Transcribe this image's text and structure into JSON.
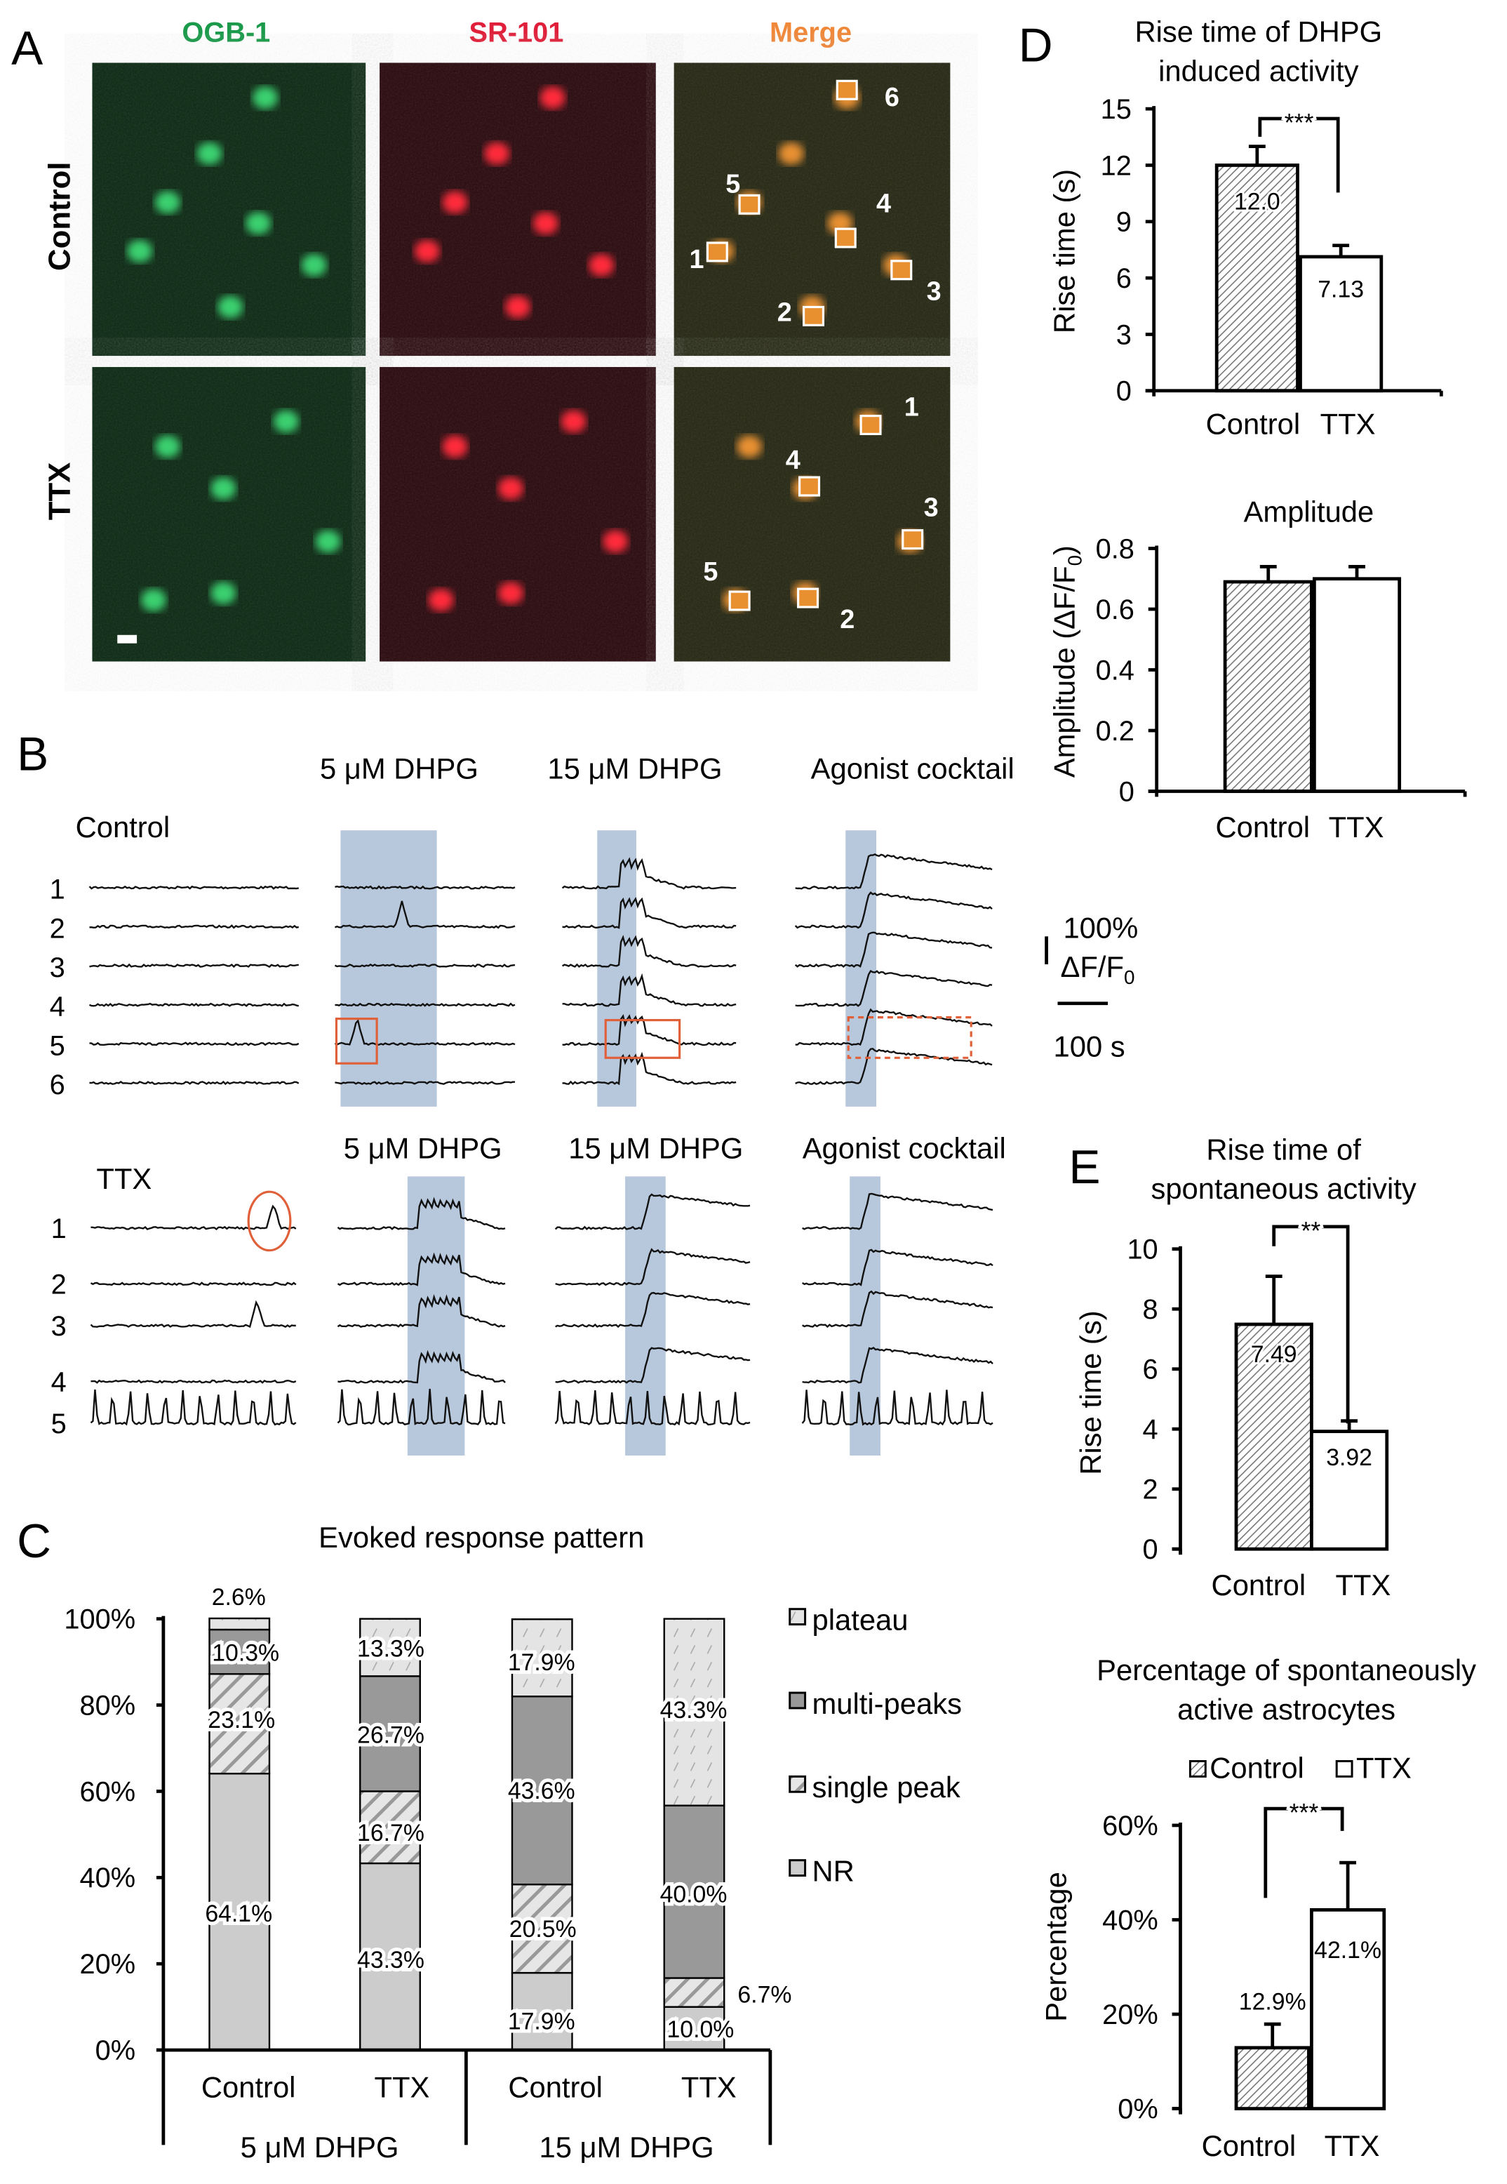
{
  "panel_labels": {
    "a": "A",
    "b": "B",
    "c": "C",
    "d": "D",
    "e": "E"
  },
  "panel_a": {
    "channels": [
      "OGB-1",
      "SR-101",
      "Merge"
    ],
    "channel_colors": [
      "#1a9a4a",
      "#e0203a",
      "#f0883a"
    ],
    "rows": [
      "Control",
      "TTX"
    ],
    "control_roi_labels": [
      "1",
      "2",
      "3",
      "4",
      "5",
      "6"
    ],
    "ttx_roi_labels": [
      "1",
      "2",
      "3",
      "4",
      "5"
    ]
  },
  "panel_b": {
    "control_label": "Control",
    "ttx_label": "TTX",
    "conditions": [
      "5 μM DHPG",
      "15 μM DHPG",
      "Agonist cocktail"
    ],
    "control_cells": [
      "1",
      "2",
      "3",
      "4",
      "5",
      "6"
    ],
    "ttx_cells": [
      "1",
      "2",
      "3",
      "4",
      "5"
    ],
    "scale_amplitude": "100%",
    "scale_unit": "ΔF/F",
    "scale_unit_sub": "0",
    "scale_time": "100 s",
    "shade_color": "#b8c8dc",
    "highlight_color": "#e0603a"
  },
  "chart_data": [
    {
      "id": "C",
      "type": "bar",
      "stacked": true,
      "title": "Evoked response pattern",
      "categories": [
        "Control",
        "TTX",
        "Control",
        "TTX"
      ],
      "groups": [
        "5 μM DHPG",
        "15 μM DHPG"
      ],
      "yticks": [
        "0%",
        "20%",
        "40%",
        "60%",
        "80%",
        "100%"
      ],
      "ylim": [
        0,
        100
      ],
      "legend_placement": "right",
      "series": [
        {
          "name": "NR",
          "values": [
            64.1,
            43.3,
            17.9,
            10.0
          ],
          "labels": [
            "64.1%",
            "43.3%",
            "17.9%",
            "10.0%"
          ]
        },
        {
          "name": "single peak",
          "values": [
            23.1,
            16.7,
            20.5,
            6.7
          ],
          "labels": [
            "23.1%",
            "16.7%",
            "20.5%",
            "6.7%"
          ]
        },
        {
          "name": "multi-peaks",
          "values": [
            10.3,
            26.7,
            43.6,
            40.0
          ],
          "labels": [
            "10.3%",
            "26.7%",
            "43.6%",
            "40.0%"
          ]
        },
        {
          "name": "plateau",
          "values": [
            2.6,
            13.3,
            17.9,
            43.3
          ],
          "labels": [
            "2.6%",
            "13.3%",
            "17.9%",
            "43.3%"
          ]
        }
      ],
      "legend_order": [
        "plateau",
        "multi-peaks",
        "single peak",
        "NR"
      ]
    },
    {
      "id": "D1",
      "type": "bar",
      "title": [
        "Rise time of DHPG",
        "induced activity"
      ],
      "ylabel": "Rise time (s)",
      "categories": [
        "Control",
        "TTX"
      ],
      "values": [
        12.0,
        7.13
      ],
      "errors": [
        1.0,
        0.6
      ],
      "value_labels": [
        "12.0",
        "7.13"
      ],
      "yticks": [
        "0",
        "3",
        "6",
        "9",
        "12",
        "15"
      ],
      "ylim": [
        0,
        15
      ],
      "significance": "***"
    },
    {
      "id": "D2",
      "type": "bar",
      "title": "Amplitude",
      "ylabel": "Amplitude (ΔF/F",
      "ylabel_sub": "0",
      "ylabel_end": ")",
      "categories": [
        "Control",
        "TTX"
      ],
      "values": [
        0.69,
        0.7
      ],
      "errors": [
        0.05,
        0.04
      ],
      "yticks": [
        "0",
        "0.2",
        "0.4",
        "0.6",
        "0.8"
      ],
      "ylim": [
        0,
        0.8
      ]
    },
    {
      "id": "E1",
      "type": "bar",
      "title": [
        "Rise time of",
        "spontaneous activity"
      ],
      "ylabel": "Rise time (s)",
      "categories": [
        "Control",
        "TTX"
      ],
      "values": [
        7.49,
        3.92
      ],
      "errors": [
        1.6,
        0.35
      ],
      "value_labels": [
        "7.49",
        "3.92"
      ],
      "yticks": [
        "0",
        "2",
        "4",
        "6",
        "8",
        "10"
      ],
      "ylim": [
        0,
        10
      ],
      "significance": "**"
    },
    {
      "id": "E2",
      "type": "bar",
      "title": [
        "Percentage of spontaneously",
        "active astrocytes"
      ],
      "ylabel": "Percentage",
      "categories": [
        "Control",
        "TTX"
      ],
      "legend": [
        "Control",
        "TTX"
      ],
      "values": [
        12.9,
        42.1
      ],
      "errors": [
        5.0,
        10.0
      ],
      "value_labels": [
        "12.9%",
        "42.1%"
      ],
      "yticks": [
        "0%",
        "20%",
        "40%",
        "60%"
      ],
      "ylim": [
        0,
        60
      ],
      "significance": "***"
    }
  ]
}
